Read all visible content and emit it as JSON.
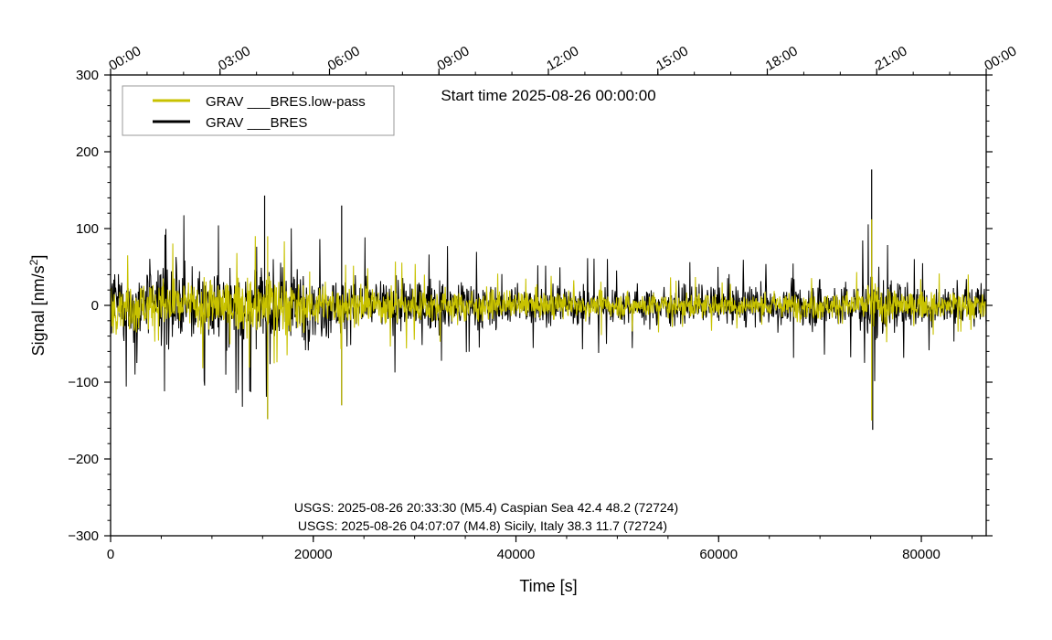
{
  "chart_data": {
    "type": "line",
    "xlabel": "Time [s]",
    "ylabel": "Signal [nm/s",
    "ylabel_sup": "2",
    "ylabel_close": "]",
    "xlim": [
      0,
      86400
    ],
    "ylim": [
      -300,
      300
    ],
    "x_ticks": [
      0,
      20000,
      40000,
      60000,
      80000
    ],
    "x_tick_labels": [
      "0",
      "20000",
      "40000",
      "60000",
      "80000"
    ],
    "y_ticks": [
      300,
      200,
      100,
      0,
      -100,
      -200,
      -300
    ],
    "y_tick_labels": [
      "300",
      "200",
      "100",
      "0",
      "−100",
      "−200",
      "−300"
    ],
    "top_axis_ticks": [
      0,
      10800,
      21600,
      32400,
      43200,
      54000,
      64800,
      75600,
      86400
    ],
    "top_axis_labels": [
      "00:00",
      "03:00",
      "06:00",
      "09:00",
      "12:00",
      "15:00",
      "18:00",
      "21:00",
      "00:00"
    ],
    "start_time_label": "Start time 2025-08-26 00:00:00",
    "legend_position": "top-left",
    "grid": false,
    "series": [
      {
        "name": "GRAV ___BRES.low-pass",
        "color": "#c8c200",
        "envelope": {
          "t": [
            0,
            3000,
            8000,
            11000,
            15500,
            20000,
            23000,
            30000,
            40000,
            50000,
            60000,
            70000,
            74000,
            75100,
            76500,
            80000,
            86400
          ],
          "amp": [
            55,
            70,
            70,
            65,
            80,
            60,
            55,
            45,
            35,
            32,
            30,
            35,
            38,
            90,
            40,
            35,
            35
          ]
        },
        "peaks": [
          {
            "x": 15500,
            "y": -148
          },
          {
            "x": 15500,
            "y": 90
          },
          {
            "x": 22800,
            "y": -130
          },
          {
            "x": 75100,
            "y": 112
          },
          {
            "x": 75100,
            "y": -150
          }
        ]
      },
      {
        "name": "GRAV ___BRES",
        "color": "#000000",
        "envelope": {
          "t": [
            0,
            3000,
            8000,
            11000,
            15500,
            20000,
            23000,
            30000,
            40000,
            50000,
            60000,
            70000,
            74000,
            75100,
            76500,
            80000,
            86400
          ],
          "amp": [
            85,
            100,
            95,
            95,
            120,
            85,
            80,
            70,
            55,
            50,
            50,
            60,
            60,
            120,
            65,
            60,
            60
          ]
        },
        "peaks": [
          {
            "x": 15200,
            "y": 143
          },
          {
            "x": 15500,
            "y": -148
          },
          {
            "x": 22800,
            "y": 130
          },
          {
            "x": 22800,
            "y": -130
          },
          {
            "x": 75100,
            "y": 177
          },
          {
            "x": 75200,
            "y": -162
          }
        ]
      }
    ],
    "annotations": [
      "USGS: 2025-08-26 20:33:30 (M5.4) Caspian Sea 42.4 48.2 (72724)",
      "USGS: 2025-08-26 04:07:07 (M4.8) Sicily, Italy 38.3 11.7 (72724)"
    ]
  }
}
